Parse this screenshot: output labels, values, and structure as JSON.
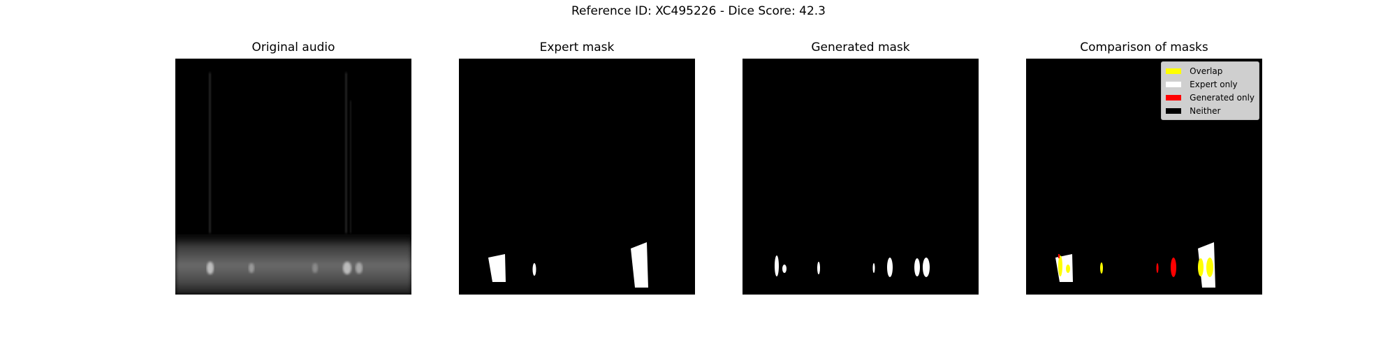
{
  "figure": {
    "suptitle": "Reference ID: XC495226 - Dice Score: 42.3"
  },
  "panels": [
    {
      "title": "Original audio"
    },
    {
      "title": "Expert mask"
    },
    {
      "title": "Generated mask"
    },
    {
      "title": "Comparison of masks"
    }
  ],
  "legend": {
    "items": [
      {
        "label": "Overlap",
        "color": "#ffff00"
      },
      {
        "label": "Expert only",
        "color": "#ffffff"
      },
      {
        "label": "Generated only",
        "color": "#ff0000"
      },
      {
        "label": "Neither",
        "color": "#000000"
      }
    ]
  }
}
